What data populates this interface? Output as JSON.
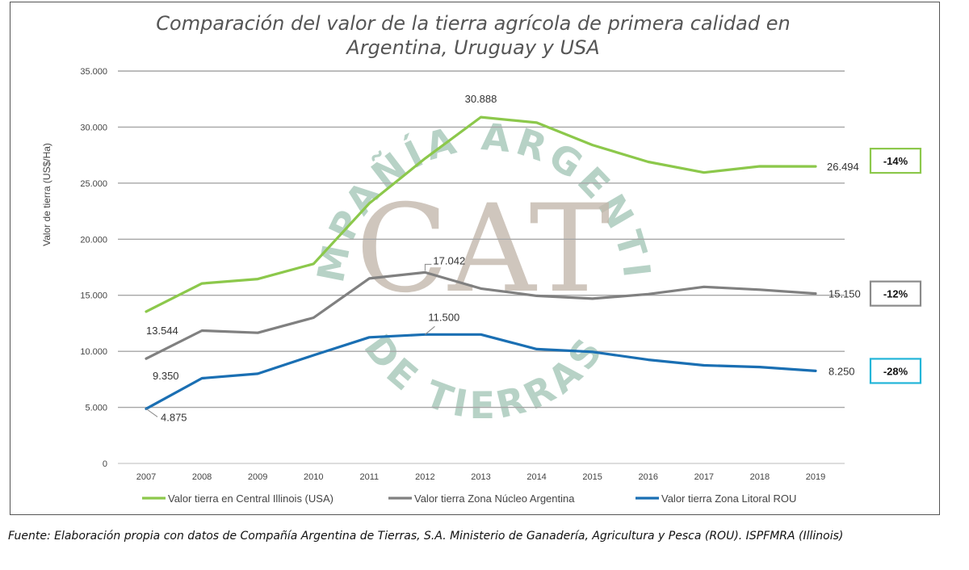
{
  "chart_data": {
    "type": "line",
    "title": "Comparación del valor de la tierra agrícola de primera calidad en Argentina, Uruguay y USA",
    "title_lines": [
      "Comparación del valor de la tierra agrícola de primera calidad en",
      "Argentina, Uruguay y USA"
    ],
    "xlabel": "",
    "ylabel": "Valor de tierra (US$/Ha)",
    "ylim": [
      0,
      35000
    ],
    "yticks": [
      0,
      5000,
      10000,
      15000,
      20000,
      25000,
      30000,
      35000
    ],
    "ytick_labels": [
      "0",
      "5.000",
      "10.000",
      "15.000",
      "20.000",
      "25.000",
      "30.000",
      "35.000"
    ],
    "categories": [
      "2007",
      "2008",
      "2009",
      "2010",
      "2011",
      "2012",
      "2013",
      "2014",
      "2015",
      "2016",
      "2017",
      "2018",
      "2019"
    ],
    "grid": true,
    "legend_position": "bottom",
    "series": [
      {
        "name": "Valor tierra en Central Illinois (USA)",
        "color": "#8cc84b",
        "values": [
          13544,
          16050,
          16450,
          17800,
          23200,
          27200,
          30888,
          30400,
          28400,
          26900,
          25950,
          26500,
          26494
        ],
        "data_labels": [
          {
            "index": 0,
            "text": "13.544"
          },
          {
            "index": 6,
            "text": "30.888"
          },
          {
            "index": 12,
            "text": "26.494"
          }
        ],
        "change_badge": "-14%",
        "badge_color": "#8cc84b"
      },
      {
        "name": "Valor tierra Zona Núcleo Argentina",
        "color": "#808080",
        "values": [
          9350,
          11850,
          11650,
          13000,
          16500,
          17042,
          15600,
          14950,
          14700,
          15100,
          15750,
          15500,
          15150
        ],
        "data_labels": [
          {
            "index": 0,
            "text": "9.350"
          },
          {
            "index": 5,
            "text": "17.042"
          },
          {
            "index": 12,
            "text": "15.150"
          }
        ],
        "change_badge": "-12%",
        "badge_color": "#8a8a8a"
      },
      {
        "name": "Valor tierra Zona Litoral ROU",
        "color": "#1a6fb3",
        "values": [
          4875,
          7600,
          8000,
          9650,
          11250,
          11500,
          11500,
          10200,
          9950,
          9250,
          8750,
          8600,
          8250
        ],
        "data_labels": [
          {
            "index": 0,
            "text": "4.875"
          },
          {
            "index": 5,
            "text": "11.500"
          },
          {
            "index": 12,
            "text": "8.250"
          }
        ],
        "change_badge": "-28%",
        "badge_color": "#22b5d8"
      }
    ]
  },
  "watermark": {
    "logo_letters": "CAT",
    "top_arc_text": "COMPAÑÍA ARGENTINA",
    "bottom_arc_text": "DE TIERRAS",
    "text_color": "#9fc4b4",
    "logo_color": "#c4b8ad"
  },
  "source_note": "Fuente: Elaboración propia con datos de Compañía Argentina de Tierras, S.A. Ministerio de Ganadería, Agricultura y Pesca (ROU). ISPFMRA (Illinois)"
}
